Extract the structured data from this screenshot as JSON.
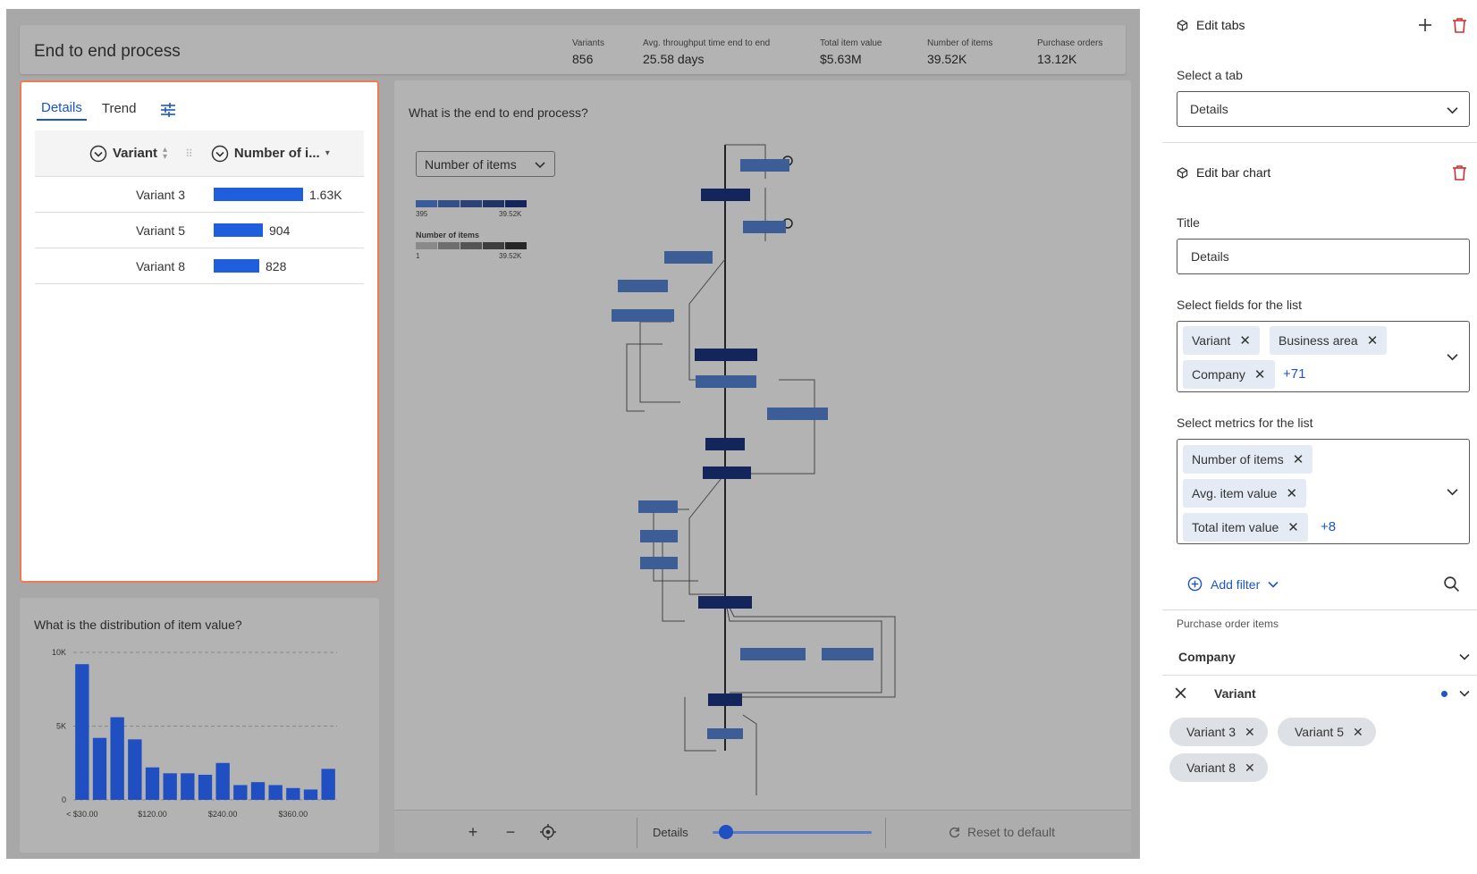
{
  "dashboard": {
    "title": "End to end process",
    "kpis": [
      {
        "label": "Variants",
        "value": "856"
      },
      {
        "label": "Avg. throughput time end to end",
        "value": "25.58 days"
      },
      {
        "label": "Total item value",
        "value": "$5.63M"
      },
      {
        "label": "Number of items",
        "value": "39.52K"
      },
      {
        "label": "Purchase orders",
        "value": "13.12K"
      }
    ]
  },
  "details": {
    "tabs": [
      "Details",
      "Trend"
    ],
    "active_tab": "Details",
    "columns": [
      "Variant",
      "Number of i..."
    ],
    "rows": [
      {
        "variant": "Variant 3",
        "value": 1630,
        "label": "1.63K"
      },
      {
        "variant": "Variant 5",
        "value": 904,
        "label": "904"
      },
      {
        "variant": "Variant 8",
        "value": 828,
        "label": "828"
      }
    ]
  },
  "histogram": {
    "question": "What is the distribution of item value?"
  },
  "chart_data": {
    "type": "bar",
    "title": "What is the distribution of item value?",
    "values": [
      9200,
      4200,
      5600,
      4100,
      2200,
      1800,
      1800,
      1700,
      2500,
      1000,
      1200,
      1000,
      800,
      700,
      2100
    ],
    "x_tick_labels": [
      "< $30.00",
      "$120.00",
      "$240.00",
      "$360.00"
    ],
    "y_tick_labels": [
      "10K",
      "5K",
      "0"
    ],
    "ylim": [
      0,
      10000
    ],
    "color": "#1f4fc0",
    "grid": true
  },
  "process_map": {
    "question": "What is the end to end process?",
    "metric_select": "Number of items",
    "legend_activities": {
      "min": "395",
      "max": "39.52K"
    },
    "legend_edges": {
      "label": "Number of items",
      "min": "1",
      "max": "39.52K"
    },
    "toolbar": {
      "zoom_in": "+",
      "zoom_out": "−",
      "detail_label": "Details",
      "detail_level": 0.08,
      "reset": "Reset to default"
    }
  },
  "sidebar": {
    "edit_tabs": "Edit tabs",
    "select_tab_label": "Select a tab",
    "select_tab_value": "Details",
    "edit_bar_chart": "Edit bar chart",
    "title_label": "Title",
    "title_value": "Details",
    "fields_label": "Select fields for the list",
    "fields": [
      "Variant",
      "Business area",
      "Company"
    ],
    "fields_more": "+71",
    "metrics_label": "Select metrics for the list",
    "metrics": [
      "Number of items",
      "Avg. item value",
      "Total item value"
    ],
    "metrics_more": "+8",
    "add_filter": "Add filter",
    "filter_section": "Purchase order items",
    "filter_company": "Company",
    "filter_variant": "Variant",
    "variant_pills": [
      "Variant 3",
      "Variant 5",
      "Variant 8"
    ]
  }
}
